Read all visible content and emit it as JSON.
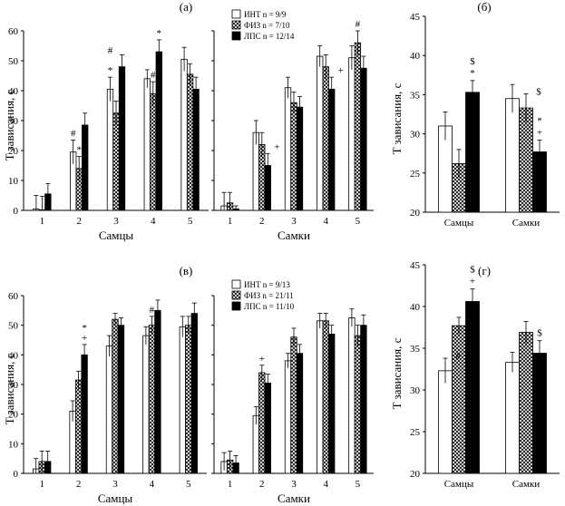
{
  "chart_data": [
    {
      "id": "a",
      "type": "bar",
      "panel_label": "(а)",
      "ylabel": "T зависания, с",
      "ylim": [
        0,
        60
      ],
      "yticks": [
        0,
        10,
        20,
        30,
        40,
        50,
        60
      ],
      "legend": [
        {
          "label": "ИНТ n = 9/9",
          "fill": "white"
        },
        {
          "label": "ФИЗ n = 7/10",
          "fill": "hatch"
        },
        {
          "label": "ЛПС n = 12/14",
          "fill": "black"
        }
      ],
      "groups": [
        {
          "xlabel": "Самцы",
          "categories": [
            "1",
            "2",
            "3",
            "4",
            "5"
          ],
          "series": [
            {
              "name": "ИНТ",
              "values": [
                0.5,
                19.5,
                40.5,
                44,
                50.5
              ],
              "errors": [
                4.5,
                4,
                4,
                3,
                4
              ]
            },
            {
              "name": "ФИЗ",
              "values": [
                0.2,
                14,
                32.5,
                39,
                45.5
              ],
              "errors": [
                4.5,
                4,
                4,
                4,
                3.5
              ]
            },
            {
              "name": "ЛПС",
              "values": [
                5.5,
                28.5,
                48,
                53,
                40.5
              ],
              "errors": [
                3.5,
                4,
                4,
                4,
                4
              ]
            }
          ],
          "annotations": [
            {
              "cat": 1,
              "series": 0,
              "text": "#"
            },
            {
              "cat": 1,
              "series": 1,
              "text": "*"
            },
            {
              "cat": 2,
              "series": 0,
              "text": "*"
            },
            {
              "cat": 2,
              "series": 0,
              "text": "#",
              "row": 1
            },
            {
              "cat": 3,
              "series": 1,
              "text": "#"
            },
            {
              "cat": 3,
              "series": 2,
              "text": "*"
            }
          ]
        },
        {
          "xlabel": "Самки",
          "categories": [
            "1",
            "2",
            "3",
            "4",
            "5"
          ],
          "series": [
            {
              "name": "ИНТ",
              "values": [
                1.5,
                26,
                41,
                51.5,
                51
              ],
              "errors": [
                4.5,
                4,
                3.5,
                3.5,
                4
              ]
            },
            {
              "name": "ФИЗ",
              "values": [
                2.5,
                22,
                36,
                48,
                56
              ],
              "errors": [
                3.5,
                4,
                3.5,
                4,
                4
              ]
            },
            {
              "name": "ЛПС",
              "values": [
                0.5,
                15,
                34.5,
                40.5,
                47.5
              ],
              "errors": [
                1,
                4,
                3.5,
                4,
                4
              ]
            }
          ],
          "annotations": [
            {
              "cat": 1,
              "series": 2,
              "text": "+"
            },
            {
              "cat": 3,
              "series": 2,
              "text": "+"
            },
            {
              "cat": 4,
              "series": 1,
              "text": "#"
            }
          ]
        }
      ]
    },
    {
      "id": "b",
      "type": "bar",
      "panel_label": "(б)",
      "ylabel": "T зависания, с",
      "ylim": [
        20,
        45
      ],
      "yticks": [
        20,
        25,
        30,
        35,
        40,
        45
      ],
      "categories": [
        "Самцы",
        "Самки"
      ],
      "series": [
        {
          "name": "ИНТ",
          "values": [
            31,
            34.5
          ],
          "errors": [
            1.8,
            1.8
          ]
        },
        {
          "name": "ФИЗ",
          "values": [
            26.2,
            33.3
          ],
          "errors": [
            1.8,
            1.8
          ]
        },
        {
          "name": "ЛПС",
          "values": [
            35.3,
            27.7
          ],
          "errors": [
            1.5,
            1.5
          ]
        }
      ],
      "annotations": [
        {
          "cat": 0,
          "series": 2,
          "lines": [
            "$",
            "*"
          ]
        },
        {
          "cat": 1,
          "series": 1,
          "lines": [
            "$"
          ],
          "offset": "right"
        },
        {
          "cat": 1,
          "series": 2,
          "lines": [
            "*",
            "+"
          ]
        }
      ]
    },
    {
      "id": "c",
      "type": "bar",
      "panel_label": "(в)",
      "ylabel": "T зависания, с",
      "ylim": [
        0,
        60
      ],
      "yticks": [
        0,
        10,
        20,
        30,
        40,
        50,
        60
      ],
      "legend": [
        {
          "label": "ИНТ n = 9/13",
          "fill": "white"
        },
        {
          "label": "ФИЗ n = 21/11",
          "fill": "hatch"
        },
        {
          "label": "ЛПС n = 11/10",
          "fill": "black"
        }
      ],
      "groups": [
        {
          "xlabel": "Самцы",
          "categories": [
            "1",
            "2",
            "3",
            "4",
            "5"
          ],
          "series": [
            {
              "name": "ИНТ",
              "values": [
                1.5,
                21,
                43,
                46.5,
                49.5
              ],
              "errors": [
                3.5,
                3.5,
                3.5,
                3,
                3.5
              ]
            },
            {
              "name": "ФИЗ",
              "values": [
                4,
                31.5,
                52,
                50,
                50
              ],
              "errors": [
                3.5,
                3,
                2,
                3,
                3
              ]
            },
            {
              "name": "ЛПС",
              "values": [
                4,
                40,
                50,
                55,
                54
              ],
              "errors": [
                3.5,
                3.5,
                2.5,
                3.5,
                3.5
              ]
            }
          ],
          "annotations": [
            {
              "cat": 1,
              "series": 2,
              "lines": [
                "*",
                "+"
              ]
            },
            {
              "cat": 3,
              "series": 1,
              "text": "#"
            }
          ]
        },
        {
          "xlabel": "Самки",
          "categories": [
            "1",
            "2",
            "3",
            "4",
            "5"
          ],
          "series": [
            {
              "name": "ИНТ",
              "values": [
                4,
                19.5,
                38,
                51.5,
                52.5
              ],
              "errors": [
                3,
                3,
                2.5,
                2.5,
                3
              ]
            },
            {
              "name": "ФИЗ",
              "values": [
                4.5,
                34,
                46,
                51.5,
                46.5
              ],
              "errors": [
                3,
                2.5,
                3,
                2.5,
                3.5
              ]
            },
            {
              "name": "ЛПС",
              "values": [
                3.5,
                30.5,
                40.5,
                47,
                50
              ],
              "errors": [
                2.5,
                3,
                3,
                3,
                3.5
              ]
            }
          ],
          "annotations": [
            {
              "cat": 1,
              "series": 1,
              "text": "+"
            }
          ]
        }
      ]
    },
    {
      "id": "d",
      "type": "bar",
      "panel_label": "(г)",
      "ylabel": "T зависания, с",
      "ylim": [
        20,
        45
      ],
      "yticks": [
        20,
        25,
        30,
        35,
        40,
        45
      ],
      "categories": [
        "Самцы",
        "Самки"
      ],
      "series": [
        {
          "name": "ИНТ",
          "values": [
            32.3,
            33.3
          ],
          "errors": [
            1.5,
            1.2
          ]
        },
        {
          "name": "ФИЗ",
          "values": [
            37.7,
            36.9
          ],
          "errors": [
            1.0,
            1.3
          ]
        },
        {
          "name": "ЛПС",
          "values": [
            40.6,
            34.4
          ],
          "errors": [
            1.5,
            1.5
          ]
        }
      ],
      "annotations": [
        {
          "cat": 0,
          "series": 0,
          "lines": [
            "#"
          ],
          "offset": "right"
        },
        {
          "cat": 0,
          "series": 2,
          "lines": [
            "$",
            "+"
          ]
        },
        {
          "cat": 1,
          "series": 2,
          "lines": [
            "$"
          ]
        }
      ]
    }
  ]
}
